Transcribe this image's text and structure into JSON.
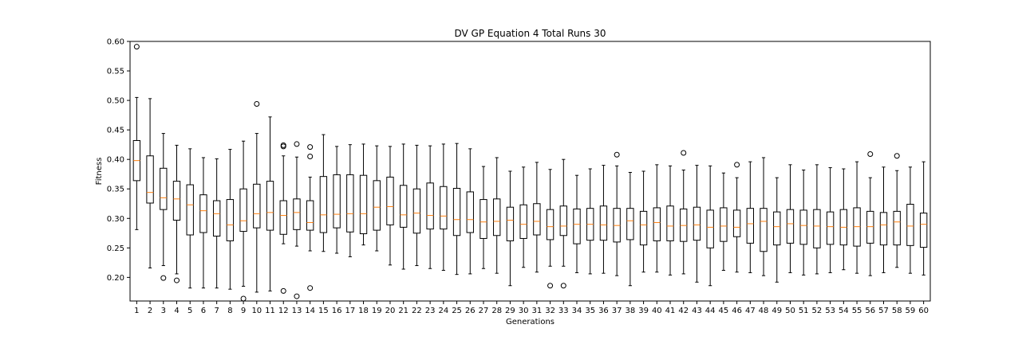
{
  "chart_data": {
    "type": "box",
    "title": "DV GP Equation 4 Total Runs 30",
    "xlabel": "Generations",
    "ylabel": "Fitness",
    "ylim": [
      0.16,
      0.6
    ],
    "yticks": [
      "0.20",
      "0.25",
      "0.30",
      "0.35",
      "0.40",
      "0.45",
      "0.50",
      "0.55",
      "0.60"
    ],
    "grid": false,
    "colors": {
      "box": "#000000",
      "median": "#ff7f0e",
      "axes": "#000000"
    },
    "boxes": [
      {
        "x": 1,
        "wlo": 0.281,
        "q1": 0.364,
        "med": 0.398,
        "q3": 0.432,
        "whi": 0.505,
        "fliers": [
          0.591
        ]
      },
      {
        "x": 2,
        "wlo": 0.216,
        "q1": 0.326,
        "med": 0.344,
        "q3": 0.406,
        "whi": 0.503,
        "fliers": []
      },
      {
        "x": 3,
        "wlo": 0.22,
        "q1": 0.315,
        "med": 0.335,
        "q3": 0.385,
        "whi": 0.444,
        "fliers": [
          0.199
        ]
      },
      {
        "x": 4,
        "wlo": 0.206,
        "q1": 0.297,
        "med": 0.333,
        "q3": 0.363,
        "whi": 0.424,
        "fliers": [
          0.195
        ]
      },
      {
        "x": 5,
        "wlo": 0.182,
        "q1": 0.272,
        "med": 0.323,
        "q3": 0.357,
        "whi": 0.418,
        "fliers": []
      },
      {
        "x": 6,
        "wlo": 0.182,
        "q1": 0.276,
        "med": 0.313,
        "q3": 0.34,
        "whi": 0.403,
        "fliers": []
      },
      {
        "x": 7,
        "wlo": 0.182,
        "q1": 0.27,
        "med": 0.308,
        "q3": 0.33,
        "whi": 0.401,
        "fliers": []
      },
      {
        "x": 8,
        "wlo": 0.18,
        "q1": 0.262,
        "med": 0.289,
        "q3": 0.332,
        "whi": 0.417,
        "fliers": []
      },
      {
        "x": 9,
        "wlo": 0.185,
        "q1": 0.278,
        "med": 0.296,
        "q3": 0.35,
        "whi": 0.431,
        "fliers": [
          0.164
        ]
      },
      {
        "x": 10,
        "wlo": 0.175,
        "q1": 0.284,
        "med": 0.308,
        "q3": 0.358,
        "whi": 0.444,
        "fliers": [
          0.494
        ]
      },
      {
        "x": 11,
        "wlo": 0.177,
        "q1": 0.28,
        "med": 0.31,
        "q3": 0.363,
        "whi": 0.472,
        "fliers": []
      },
      {
        "x": 12,
        "wlo": 0.257,
        "q1": 0.273,
        "med": 0.305,
        "q3": 0.33,
        "whi": 0.406,
        "fliers": [
          0.422,
          0.424,
          0.177
        ]
      },
      {
        "x": 13,
        "wlo": 0.253,
        "q1": 0.281,
        "med": 0.31,
        "q3": 0.333,
        "whi": 0.404,
        "fliers": [
          0.426,
          0.168
        ]
      },
      {
        "x": 14,
        "wlo": 0.245,
        "q1": 0.28,
        "med": 0.293,
        "q3": 0.33,
        "whi": 0.37,
        "fliers": [
          0.421,
          0.405,
          0.182
        ]
      },
      {
        "x": 15,
        "wlo": 0.244,
        "q1": 0.276,
        "med": 0.306,
        "q3": 0.371,
        "whi": 0.442,
        "fliers": []
      },
      {
        "x": 16,
        "wlo": 0.241,
        "q1": 0.284,
        "med": 0.307,
        "q3": 0.374,
        "whi": 0.422,
        "fliers": []
      },
      {
        "x": 17,
        "wlo": 0.235,
        "q1": 0.277,
        "med": 0.308,
        "q3": 0.374,
        "whi": 0.425,
        "fliers": []
      },
      {
        "x": 18,
        "wlo": 0.255,
        "q1": 0.274,
        "med": 0.308,
        "q3": 0.373,
        "whi": 0.426,
        "fliers": []
      },
      {
        "x": 19,
        "wlo": 0.245,
        "q1": 0.28,
        "med": 0.319,
        "q3": 0.364,
        "whi": 0.423,
        "fliers": []
      },
      {
        "x": 20,
        "wlo": 0.221,
        "q1": 0.289,
        "med": 0.32,
        "q3": 0.37,
        "whi": 0.422,
        "fliers": []
      },
      {
        "x": 21,
        "wlo": 0.214,
        "q1": 0.285,
        "med": 0.306,
        "q3": 0.356,
        "whi": 0.426,
        "fliers": []
      },
      {
        "x": 22,
        "wlo": 0.22,
        "q1": 0.275,
        "med": 0.309,
        "q3": 0.35,
        "whi": 0.424,
        "fliers": []
      },
      {
        "x": 23,
        "wlo": 0.215,
        "q1": 0.282,
        "med": 0.305,
        "q3": 0.36,
        "whi": 0.423,
        "fliers": []
      },
      {
        "x": 24,
        "wlo": 0.212,
        "q1": 0.282,
        "med": 0.304,
        "q3": 0.354,
        "whi": 0.426,
        "fliers": []
      },
      {
        "x": 25,
        "wlo": 0.205,
        "q1": 0.271,
        "med": 0.298,
        "q3": 0.351,
        "whi": 0.427,
        "fliers": []
      },
      {
        "x": 26,
        "wlo": 0.206,
        "q1": 0.276,
        "med": 0.298,
        "q3": 0.345,
        "whi": 0.418,
        "fliers": []
      },
      {
        "x": 27,
        "wlo": 0.215,
        "q1": 0.266,
        "med": 0.294,
        "q3": 0.332,
        "whi": 0.388,
        "fliers": []
      },
      {
        "x": 28,
        "wlo": 0.207,
        "q1": 0.271,
        "med": 0.295,
        "q3": 0.333,
        "whi": 0.403,
        "fliers": []
      },
      {
        "x": 29,
        "wlo": 0.186,
        "q1": 0.262,
        "med": 0.297,
        "q3": 0.319,
        "whi": 0.38,
        "fliers": []
      },
      {
        "x": 30,
        "wlo": 0.217,
        "q1": 0.266,
        "med": 0.29,
        "q3": 0.323,
        "whi": 0.387,
        "fliers": []
      },
      {
        "x": 31,
        "wlo": 0.209,
        "q1": 0.272,
        "med": 0.295,
        "q3": 0.325,
        "whi": 0.395,
        "fliers": []
      },
      {
        "x": 32,
        "wlo": 0.219,
        "q1": 0.264,
        "med": 0.286,
        "q3": 0.315,
        "whi": 0.383,
        "fliers": [
          0.186
        ]
      },
      {
        "x": 33,
        "wlo": 0.219,
        "q1": 0.271,
        "med": 0.287,
        "q3": 0.321,
        "whi": 0.4,
        "fliers": [
          0.186
        ]
      },
      {
        "x": 34,
        "wlo": 0.208,
        "q1": 0.257,
        "med": 0.29,
        "q3": 0.316,
        "whi": 0.373,
        "fliers": []
      },
      {
        "x": 35,
        "wlo": 0.206,
        "q1": 0.263,
        "med": 0.29,
        "q3": 0.317,
        "whi": 0.384,
        "fliers": []
      },
      {
        "x": 36,
        "wlo": 0.207,
        "q1": 0.263,
        "med": 0.289,
        "q3": 0.321,
        "whi": 0.39,
        "fliers": []
      },
      {
        "x": 37,
        "wlo": 0.203,
        "q1": 0.26,
        "med": 0.288,
        "q3": 0.317,
        "whi": 0.389,
        "fliers": [
          0.408
        ]
      },
      {
        "x": 38,
        "wlo": 0.186,
        "q1": 0.264,
        "med": 0.296,
        "q3": 0.317,
        "whi": 0.378,
        "fliers": []
      },
      {
        "x": 39,
        "wlo": 0.209,
        "q1": 0.255,
        "med": 0.289,
        "q3": 0.312,
        "whi": 0.38,
        "fliers": []
      },
      {
        "x": 40,
        "wlo": 0.209,
        "q1": 0.262,
        "med": 0.293,
        "q3": 0.318,
        "whi": 0.391,
        "fliers": []
      },
      {
        "x": 41,
        "wlo": 0.204,
        "q1": 0.262,
        "med": 0.287,
        "q3": 0.321,
        "whi": 0.389,
        "fliers": []
      },
      {
        "x": 42,
        "wlo": 0.206,
        "q1": 0.261,
        "med": 0.288,
        "q3": 0.316,
        "whi": 0.382,
        "fliers": [
          0.411
        ]
      },
      {
        "x": 43,
        "wlo": 0.192,
        "q1": 0.263,
        "med": 0.289,
        "q3": 0.319,
        "whi": 0.39,
        "fliers": []
      },
      {
        "x": 44,
        "wlo": 0.186,
        "q1": 0.25,
        "med": 0.285,
        "q3": 0.314,
        "whi": 0.389,
        "fliers": []
      },
      {
        "x": 45,
        "wlo": 0.212,
        "q1": 0.261,
        "med": 0.287,
        "q3": 0.318,
        "whi": 0.377,
        "fliers": []
      },
      {
        "x": 46,
        "wlo": 0.209,
        "q1": 0.269,
        "med": 0.285,
        "q3": 0.314,
        "whi": 0.369,
        "fliers": [
          0.391
        ]
      },
      {
        "x": 47,
        "wlo": 0.208,
        "q1": 0.258,
        "med": 0.291,
        "q3": 0.317,
        "whi": 0.396,
        "fliers": []
      },
      {
        "x": 48,
        "wlo": 0.203,
        "q1": 0.244,
        "med": 0.295,
        "q3": 0.317,
        "whi": 0.403,
        "fliers": []
      },
      {
        "x": 49,
        "wlo": 0.192,
        "q1": 0.255,
        "med": 0.286,
        "q3": 0.311,
        "whi": 0.369,
        "fliers": []
      },
      {
        "x": 50,
        "wlo": 0.208,
        "q1": 0.258,
        "med": 0.291,
        "q3": 0.315,
        "whi": 0.391,
        "fliers": []
      },
      {
        "x": 51,
        "wlo": 0.204,
        "q1": 0.256,
        "med": 0.288,
        "q3": 0.314,
        "whi": 0.382,
        "fliers": []
      },
      {
        "x": 52,
        "wlo": 0.206,
        "q1": 0.25,
        "med": 0.287,
        "q3": 0.315,
        "whi": 0.391,
        "fliers": []
      },
      {
        "x": 53,
        "wlo": 0.208,
        "q1": 0.256,
        "med": 0.286,
        "q3": 0.311,
        "whi": 0.386,
        "fliers": []
      },
      {
        "x": 54,
        "wlo": 0.213,
        "q1": 0.255,
        "med": 0.285,
        "q3": 0.315,
        "whi": 0.384,
        "fliers": []
      },
      {
        "x": 55,
        "wlo": 0.207,
        "q1": 0.253,
        "med": 0.286,
        "q3": 0.318,
        "whi": 0.396,
        "fliers": []
      },
      {
        "x": 56,
        "wlo": 0.203,
        "q1": 0.258,
        "med": 0.286,
        "q3": 0.312,
        "whi": 0.369,
        "fliers": [
          0.409
        ]
      },
      {
        "x": 57,
        "wlo": 0.208,
        "q1": 0.255,
        "med": 0.289,
        "q3": 0.31,
        "whi": 0.387,
        "fliers": []
      },
      {
        "x": 58,
        "wlo": 0.217,
        "q1": 0.255,
        "med": 0.294,
        "q3": 0.312,
        "whi": 0.381,
        "fliers": [
          0.406
        ]
      },
      {
        "x": 59,
        "wlo": 0.207,
        "q1": 0.254,
        "med": 0.287,
        "q3": 0.324,
        "whi": 0.387,
        "fliers": []
      },
      {
        "x": 60,
        "wlo": 0.204,
        "q1": 0.251,
        "med": 0.29,
        "q3": 0.309,
        "whi": 0.396,
        "fliers": []
      }
    ]
  }
}
